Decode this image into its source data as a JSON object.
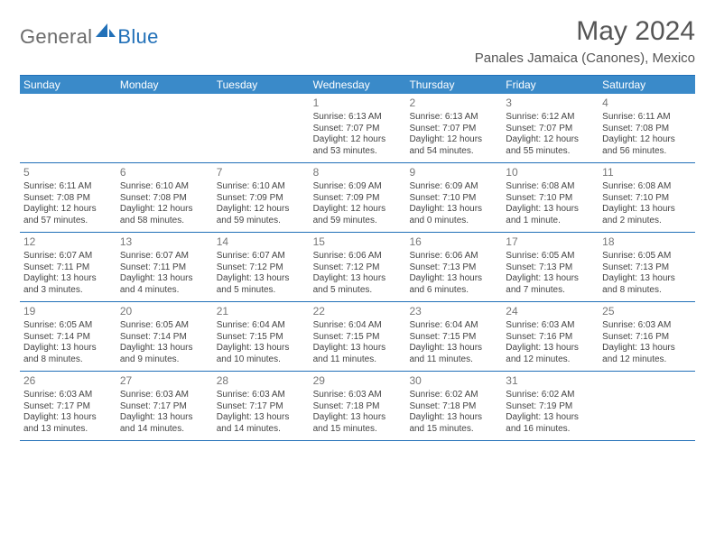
{
  "logo": {
    "general": "General",
    "blue": "Blue"
  },
  "title": "May 2024",
  "location": "Panales Jamaica (Canones), Mexico",
  "colors": {
    "header_bg": "#3a8ac9",
    "header_text": "#ffffff",
    "border": "#2170b8",
    "body_text": "#444444",
    "daynum_text": "#777777",
    "title_text": "#555555",
    "logo_gray": "#6b6b6b",
    "logo_blue": "#2170b8",
    "background": "#ffffff"
  },
  "typography": {
    "title_fontsize": 30,
    "location_fontsize": 15,
    "dow_fontsize": 12,
    "daynum_fontsize": 12,
    "cell_fontsize": 10,
    "logo_fontsize": 22
  },
  "dow": [
    "Sunday",
    "Monday",
    "Tuesday",
    "Wednesday",
    "Thursday",
    "Friday",
    "Saturday"
  ],
  "weeks": [
    [
      {
        "n": "",
        "lines": []
      },
      {
        "n": "",
        "lines": []
      },
      {
        "n": "",
        "lines": []
      },
      {
        "n": "1",
        "lines": [
          "Sunrise: 6:13 AM",
          "Sunset: 7:07 PM",
          "Daylight: 12 hours and 53 minutes."
        ]
      },
      {
        "n": "2",
        "lines": [
          "Sunrise: 6:13 AM",
          "Sunset: 7:07 PM",
          "Daylight: 12 hours and 54 minutes."
        ]
      },
      {
        "n": "3",
        "lines": [
          "Sunrise: 6:12 AM",
          "Sunset: 7:07 PM",
          "Daylight: 12 hours and 55 minutes."
        ]
      },
      {
        "n": "4",
        "lines": [
          "Sunrise: 6:11 AM",
          "Sunset: 7:08 PM",
          "Daylight: 12 hours and 56 minutes."
        ]
      }
    ],
    [
      {
        "n": "5",
        "lines": [
          "Sunrise: 6:11 AM",
          "Sunset: 7:08 PM",
          "Daylight: 12 hours and 57 minutes."
        ]
      },
      {
        "n": "6",
        "lines": [
          "Sunrise: 6:10 AM",
          "Sunset: 7:08 PM",
          "Daylight: 12 hours and 58 minutes."
        ]
      },
      {
        "n": "7",
        "lines": [
          "Sunrise: 6:10 AM",
          "Sunset: 7:09 PM",
          "Daylight: 12 hours and 59 minutes."
        ]
      },
      {
        "n": "8",
        "lines": [
          "Sunrise: 6:09 AM",
          "Sunset: 7:09 PM",
          "Daylight: 12 hours and 59 minutes."
        ]
      },
      {
        "n": "9",
        "lines": [
          "Sunrise: 6:09 AM",
          "Sunset: 7:10 PM",
          "Daylight: 13 hours and 0 minutes."
        ]
      },
      {
        "n": "10",
        "lines": [
          "Sunrise: 6:08 AM",
          "Sunset: 7:10 PM",
          "Daylight: 13 hours and 1 minute."
        ]
      },
      {
        "n": "11",
        "lines": [
          "Sunrise: 6:08 AM",
          "Sunset: 7:10 PM",
          "Daylight: 13 hours and 2 minutes."
        ]
      }
    ],
    [
      {
        "n": "12",
        "lines": [
          "Sunrise: 6:07 AM",
          "Sunset: 7:11 PM",
          "Daylight: 13 hours and 3 minutes."
        ]
      },
      {
        "n": "13",
        "lines": [
          "Sunrise: 6:07 AM",
          "Sunset: 7:11 PM",
          "Daylight: 13 hours and 4 minutes."
        ]
      },
      {
        "n": "14",
        "lines": [
          "Sunrise: 6:07 AM",
          "Sunset: 7:12 PM",
          "Daylight: 13 hours and 5 minutes."
        ]
      },
      {
        "n": "15",
        "lines": [
          "Sunrise: 6:06 AM",
          "Sunset: 7:12 PM",
          "Daylight: 13 hours and 5 minutes."
        ]
      },
      {
        "n": "16",
        "lines": [
          "Sunrise: 6:06 AM",
          "Sunset: 7:13 PM",
          "Daylight: 13 hours and 6 minutes."
        ]
      },
      {
        "n": "17",
        "lines": [
          "Sunrise: 6:05 AM",
          "Sunset: 7:13 PM",
          "Daylight: 13 hours and 7 minutes."
        ]
      },
      {
        "n": "18",
        "lines": [
          "Sunrise: 6:05 AM",
          "Sunset: 7:13 PM",
          "Daylight: 13 hours and 8 minutes."
        ]
      }
    ],
    [
      {
        "n": "19",
        "lines": [
          "Sunrise: 6:05 AM",
          "Sunset: 7:14 PM",
          "Daylight: 13 hours and 8 minutes."
        ]
      },
      {
        "n": "20",
        "lines": [
          "Sunrise: 6:05 AM",
          "Sunset: 7:14 PM",
          "Daylight: 13 hours and 9 minutes."
        ]
      },
      {
        "n": "21",
        "lines": [
          "Sunrise: 6:04 AM",
          "Sunset: 7:15 PM",
          "Daylight: 13 hours and 10 minutes."
        ]
      },
      {
        "n": "22",
        "lines": [
          "Sunrise: 6:04 AM",
          "Sunset: 7:15 PM",
          "Daylight: 13 hours and 11 minutes."
        ]
      },
      {
        "n": "23",
        "lines": [
          "Sunrise: 6:04 AM",
          "Sunset: 7:15 PM",
          "Daylight: 13 hours and 11 minutes."
        ]
      },
      {
        "n": "24",
        "lines": [
          "Sunrise: 6:03 AM",
          "Sunset: 7:16 PM",
          "Daylight: 13 hours and 12 minutes."
        ]
      },
      {
        "n": "25",
        "lines": [
          "Sunrise: 6:03 AM",
          "Sunset: 7:16 PM",
          "Daylight: 13 hours and 12 minutes."
        ]
      }
    ],
    [
      {
        "n": "26",
        "lines": [
          "Sunrise: 6:03 AM",
          "Sunset: 7:17 PM",
          "Daylight: 13 hours and 13 minutes."
        ]
      },
      {
        "n": "27",
        "lines": [
          "Sunrise: 6:03 AM",
          "Sunset: 7:17 PM",
          "Daylight: 13 hours and 14 minutes."
        ]
      },
      {
        "n": "28",
        "lines": [
          "Sunrise: 6:03 AM",
          "Sunset: 7:17 PM",
          "Daylight: 13 hours and 14 minutes."
        ]
      },
      {
        "n": "29",
        "lines": [
          "Sunrise: 6:03 AM",
          "Sunset: 7:18 PM",
          "Daylight: 13 hours and 15 minutes."
        ]
      },
      {
        "n": "30",
        "lines": [
          "Sunrise: 6:02 AM",
          "Sunset: 7:18 PM",
          "Daylight: 13 hours and 15 minutes."
        ]
      },
      {
        "n": "31",
        "lines": [
          "Sunrise: 6:02 AM",
          "Sunset: 7:19 PM",
          "Daylight: 13 hours and 16 minutes."
        ]
      },
      {
        "n": "",
        "lines": []
      }
    ]
  ]
}
